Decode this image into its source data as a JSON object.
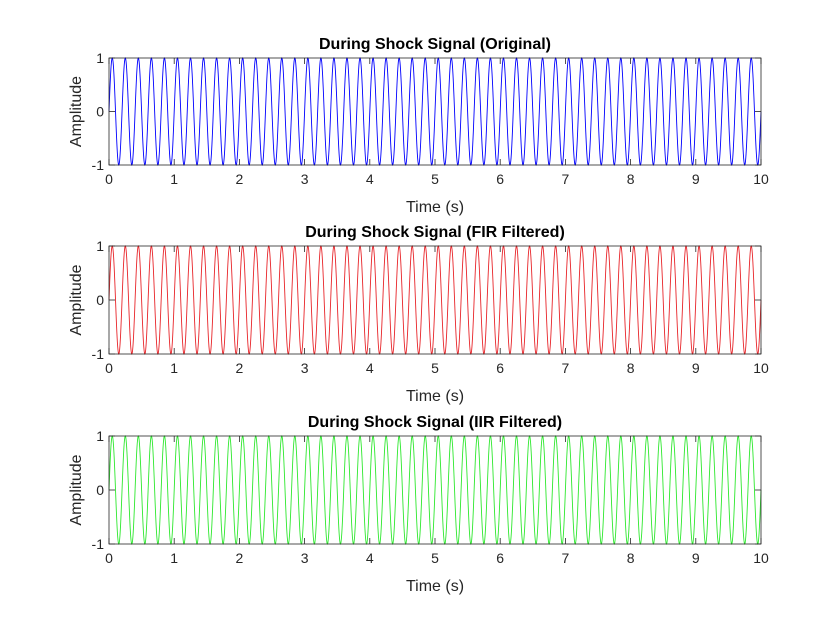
{
  "chart_data": [
    {
      "type": "line",
      "title": "During Shock Signal (Original)",
      "xlabel": "Time (s)",
      "ylabel": "Amplitude",
      "xlim": [
        0,
        10
      ],
      "ylim": [
        -1,
        1
      ],
      "x_ticks": [
        0,
        1,
        2,
        3,
        4,
        5,
        6,
        7,
        8,
        9,
        10
      ],
      "y_ticks": [
        -1,
        0,
        1
      ],
      "grid": false,
      "series": [
        {
          "color": "#0000ff",
          "signal": "sine",
          "frequency_hz": 5,
          "amplitude": 1,
          "x_start": 0,
          "x_end": 10
        }
      ]
    },
    {
      "type": "line",
      "title": "During Shock Signal (FIR Filtered)",
      "xlabel": "Time (s)",
      "ylabel": "Amplitude",
      "xlim": [
        0,
        10
      ],
      "ylim": [
        -1,
        1
      ],
      "x_ticks": [
        0,
        1,
        2,
        3,
        4,
        5,
        6,
        7,
        8,
        9,
        10
      ],
      "y_ticks": [
        -1,
        0,
        1
      ],
      "grid": false,
      "series": [
        {
          "color": "#e8252a",
          "signal": "sine",
          "frequency_hz": 5,
          "amplitude": 1,
          "x_start": 0,
          "x_end": 10
        }
      ]
    },
    {
      "type": "line",
      "title": "During Shock Signal (IIR Filtered)",
      "xlabel": "Time (s)",
      "ylabel": "Amplitude",
      "xlim": [
        0,
        10
      ],
      "ylim": [
        -1,
        1
      ],
      "x_ticks": [
        0,
        1,
        2,
        3,
        4,
        5,
        6,
        7,
        8,
        9,
        10
      ],
      "y_ticks": [
        -1,
        0,
        1
      ],
      "grid": false,
      "series": [
        {
          "color": "#2ee82e",
          "signal": "sine",
          "frequency_hz": 5,
          "amplitude": 1,
          "x_start": 0,
          "x_end": 10
        }
      ]
    }
  ]
}
